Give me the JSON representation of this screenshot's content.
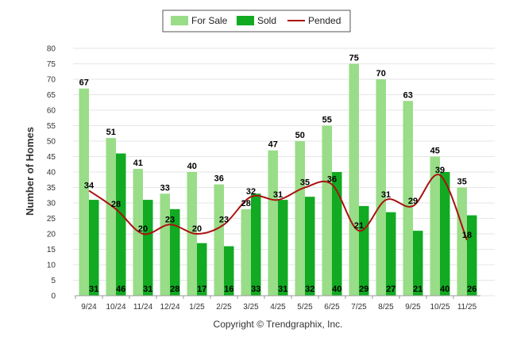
{
  "chart_data": {
    "type": "bar",
    "ylabel": "Number of Homes",
    "ylim": [
      0,
      80
    ],
    "ytick_step": 5,
    "categories": [
      "9/24",
      "10/24",
      "11/24",
      "12/24",
      "1/25",
      "2/25",
      "3/25",
      "4/25",
      "5/25",
      "6/25",
      "7/25",
      "8/25",
      "9/25",
      "10/25",
      "11/25"
    ],
    "series": [
      {
        "name": "For Sale",
        "kind": "bar",
        "color": "#99dd88",
        "values": [
          67,
          51,
          41,
          33,
          40,
          36,
          28,
          47,
          50,
          55,
          75,
          70,
          63,
          45,
          35
        ]
      },
      {
        "name": "Sold",
        "kind": "bar",
        "color": "#11aa22",
        "values": [
          31,
          46,
          31,
          28,
          17,
          16,
          33,
          31,
          32,
          40,
          29,
          27,
          21,
          40,
          26
        ]
      },
      {
        "name": "Pended",
        "kind": "line",
        "color": "#aa1111",
        "values": [
          34,
          28,
          20,
          23,
          20,
          23,
          32,
          31,
          35,
          36,
          21,
          31,
          29,
          39,
          18
        ]
      }
    ],
    "legend_position": "top-center",
    "grid": true,
    "footer": "Copyright © Trendgraphix, Inc."
  }
}
